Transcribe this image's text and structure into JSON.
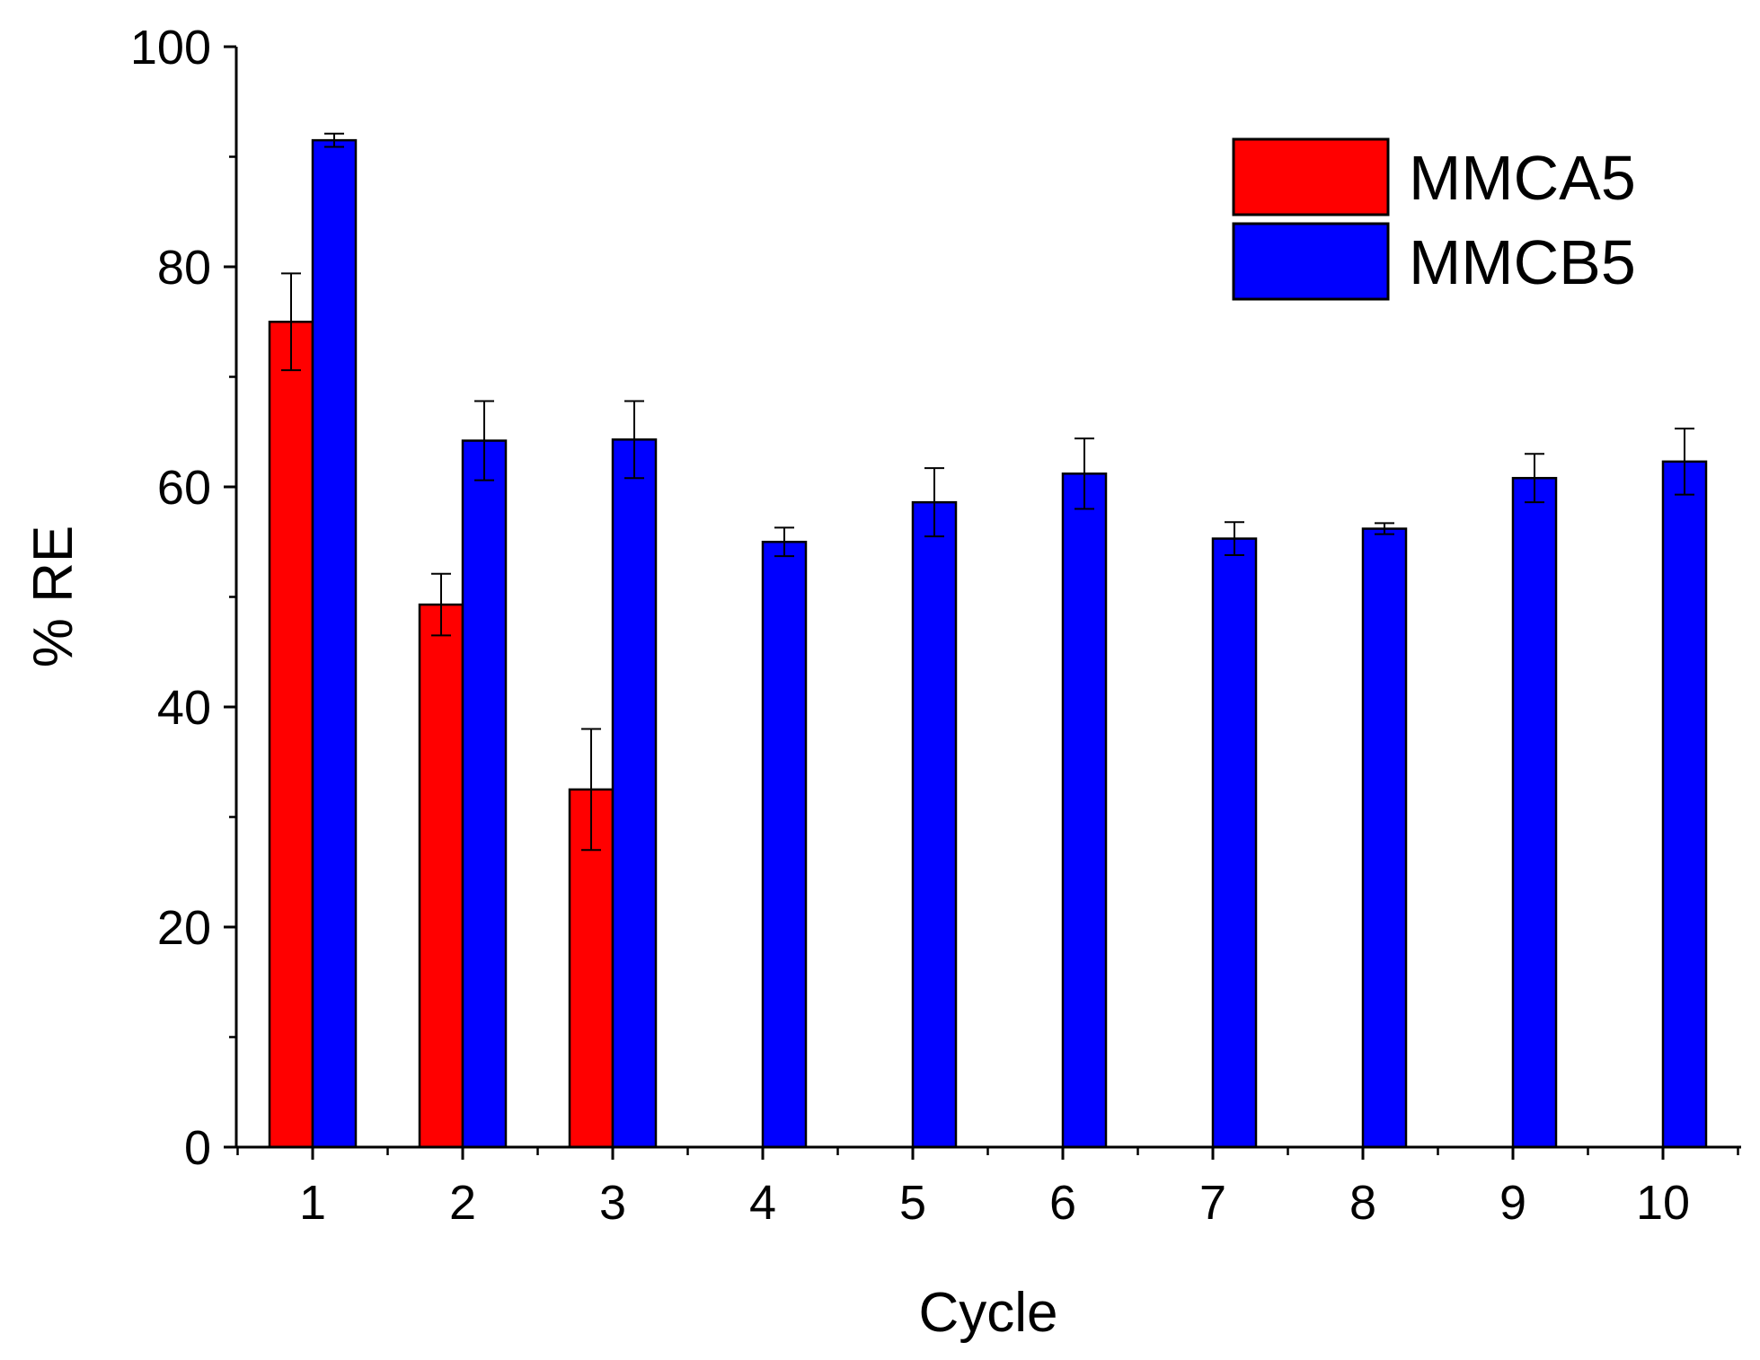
{
  "chart_data": {
    "type": "bar",
    "title": "",
    "xlabel": "Cycle",
    "ylabel": "% RE",
    "ylim": [
      0,
      100
    ],
    "yticks": [
      0,
      20,
      40,
      60,
      80,
      100
    ],
    "categories": [
      "1",
      "2",
      "3",
      "4",
      "5",
      "6",
      "7",
      "8",
      "9",
      "10"
    ],
    "legend_position": "top-right",
    "series": [
      {
        "name": "MMCA5",
        "color": "#FF0000",
        "values": [
          75.0,
          49.3,
          32.5,
          null,
          null,
          null,
          null,
          null,
          null,
          null
        ],
        "errors": [
          4.4,
          2.8,
          5.5,
          null,
          null,
          null,
          null,
          null,
          null,
          null
        ]
      },
      {
        "name": "MMCB5",
        "color": "#0000FF",
        "values": [
          91.5,
          64.2,
          64.3,
          55.0,
          58.6,
          61.2,
          55.3,
          56.2,
          60.8,
          62.3
        ],
        "errors": [
          0.6,
          3.6,
          3.5,
          1.3,
          3.1,
          3.2,
          1.5,
          0.5,
          2.2,
          3.0
        ]
      }
    ]
  }
}
